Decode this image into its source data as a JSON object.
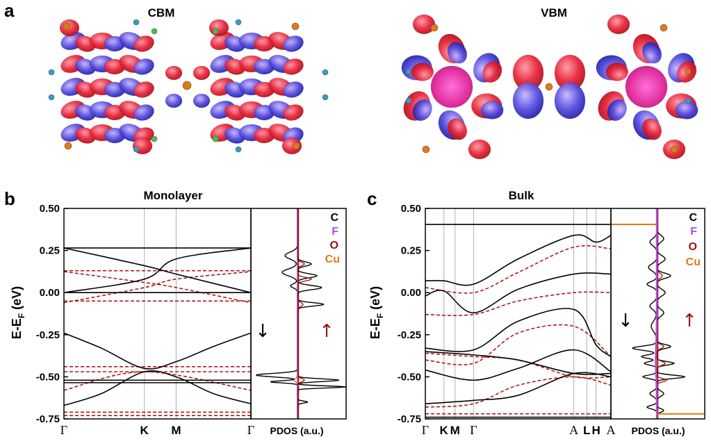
{
  "panels": {
    "a": "a",
    "b": "b",
    "c": "c"
  },
  "orbitals": {
    "cbm_label": "CBM",
    "vbm_label": "VBM"
  },
  "colors": {
    "red_lobe": "#e8283a",
    "blue_lobe": "#3535d0",
    "band_up": "#000000",
    "band_down": "#b01818",
    "F": "#b04ee0",
    "O": "#a01010",
    "Cu": "#e07a10",
    "grid": "#b0b0b0"
  },
  "chart_data": [
    {
      "type": "line",
      "title": "Monolayer",
      "ylabel": "E-E_F (eV)",
      "ylabel_main": "E-E",
      "ylabel_sub": "F",
      "ylabel_unit": " (eV)",
      "ylim": [
        -0.75,
        0.5
      ],
      "yticks": [
        "0.50",
        "0.25",
        "0.00",
        "-0.25",
        "-0.50",
        "-0.75"
      ],
      "kpath": [
        "Γ",
        "K",
        "M",
        "Γ"
      ],
      "kpos": [
        0,
        0.43,
        0.6,
        1.0
      ],
      "bands_black": [
        [
          [
            0,
            0.265
          ],
          [
            0.43,
            0.16
          ],
          [
            0.6,
            0.11
          ],
          [
            1,
            0
          ]
        ],
        [
          [
            0,
            0
          ],
          [
            0.43,
            0.08
          ],
          [
            0.6,
            0.2
          ],
          [
            1,
            0.265
          ]
        ],
        [
          [
            0,
            0.265
          ],
          [
            1,
            0.265
          ]
        ],
        [
          [
            0,
            0
          ],
          [
            1,
            0
          ]
        ],
        [
          [
            0,
            -0.24
          ],
          [
            0.2,
            -0.33
          ],
          [
            0.43,
            -0.45
          ],
          [
            0.6,
            -0.41
          ],
          [
            0.8,
            -0.32
          ],
          [
            1,
            -0.24
          ]
        ],
        [
          [
            0,
            -0.67
          ],
          [
            0.2,
            -0.6
          ],
          [
            0.43,
            -0.47
          ],
          [
            0.6,
            -0.5
          ],
          [
            0.8,
            -0.6
          ],
          [
            1,
            -0.66
          ]
        ],
        [
          [
            0,
            -0.52
          ],
          [
            1,
            -0.52
          ]
        ],
        [
          [
            0,
            -0.535
          ],
          [
            1,
            -0.535
          ]
        ]
      ],
      "bands_red": [
        [
          [
            0,
            0.13
          ],
          [
            1,
            0.13
          ]
        ],
        [
          [
            0,
            0.125
          ],
          [
            0.43,
            0.06
          ],
          [
            0.6,
            0.03
          ],
          [
            1,
            -0.06
          ]
        ],
        [
          [
            0,
            -0.06
          ],
          [
            0.43,
            0.03
          ],
          [
            0.6,
            0.08
          ],
          [
            1,
            0.125
          ]
        ],
        [
          [
            0,
            -0.05
          ],
          [
            1,
            -0.05
          ]
        ],
        [
          [
            0,
            -0.44
          ],
          [
            1,
            -0.44
          ]
        ],
        [
          [
            0,
            -0.47
          ],
          [
            1,
            -0.47
          ]
        ],
        [
          [
            0,
            -0.58
          ],
          [
            0.43,
            -0.47
          ],
          [
            1,
            -0.58
          ]
        ],
        [
          [
            0,
            -0.71
          ],
          [
            1,
            -0.71
          ]
        ],
        [
          [
            0,
            -0.73
          ],
          [
            1,
            -0.73
          ]
        ]
      ],
      "pdos_label": "PDOS (a.u.)",
      "legend": [
        "C",
        "F",
        "O",
        "Cu"
      ],
      "spin_down_arrow": "↓",
      "spin_up_arrow": "↑"
    },
    {
      "type": "line",
      "title": "Bulk",
      "ylabel": "E-E_F (eV)",
      "ylabel_main": "E-E",
      "ylabel_sub": "F",
      "ylabel_unit": " (eV)",
      "ylim": [
        -0.75,
        0.5
      ],
      "yticks": [
        "0.50",
        "0.25",
        "0.00",
        "-0.25",
        "-0.50",
        "-0.75"
      ],
      "kpath": [
        "Γ",
        "K",
        "M",
        "Γ",
        "A",
        "L",
        "H",
        "A"
      ],
      "kpos": [
        0,
        0.1,
        0.16,
        0.26,
        0.8,
        0.87,
        0.92,
        1.0
      ],
      "bands_black": [
        [
          [
            0,
            0.405
          ],
          [
            1,
            0.405
          ]
        ],
        [
          [
            0,
            0.07
          ],
          [
            0.1,
            0.07
          ],
          [
            0.26,
            0.05
          ],
          [
            0.5,
            0.2
          ],
          [
            0.8,
            0.34
          ],
          [
            0.92,
            0.3
          ],
          [
            1,
            0.34
          ]
        ],
        [
          [
            0,
            -0.02
          ],
          [
            0.1,
            0.01
          ],
          [
            0.26,
            -0.12
          ],
          [
            0.5,
            0.02
          ],
          [
            0.8,
            0.11
          ],
          [
            1,
            0.11
          ]
        ],
        [
          [
            0,
            -0.33
          ],
          [
            0.26,
            -0.34
          ],
          [
            0.5,
            -0.17
          ],
          [
            0.8,
            -0.1
          ],
          [
            0.92,
            -0.31
          ],
          [
            1,
            -0.38
          ]
        ],
        [
          [
            0,
            -0.35
          ],
          [
            0.26,
            -0.37
          ],
          [
            0.5,
            -0.4
          ],
          [
            0.8,
            -0.48
          ],
          [
            1,
            -0.48
          ]
        ],
        [
          [
            0,
            -0.46
          ],
          [
            0.26,
            -0.52
          ],
          [
            0.5,
            -0.45
          ],
          [
            0.8,
            -0.34
          ],
          [
            1,
            -0.47
          ]
        ],
        [
          [
            0,
            -0.66
          ],
          [
            0.26,
            -0.64
          ],
          [
            0.5,
            -0.61
          ],
          [
            0.8,
            -0.48
          ],
          [
            1,
            -0.5
          ]
        ],
        [
          [
            0,
            -0.74
          ],
          [
            1,
            -0.74
          ]
        ]
      ],
      "bands_red": [
        [
          [
            0,
            0.03
          ],
          [
            0.26,
            0.0
          ],
          [
            0.5,
            0.12
          ],
          [
            0.8,
            0.27
          ],
          [
            1,
            0.26
          ]
        ],
        [
          [
            0,
            -0.13
          ],
          [
            0.26,
            -0.13
          ],
          [
            0.5,
            -0.05
          ],
          [
            0.8,
            0.0
          ],
          [
            1,
            0.0
          ]
        ],
        [
          [
            0,
            -0.36
          ],
          [
            0.26,
            -0.38
          ],
          [
            0.5,
            -0.4
          ],
          [
            0.8,
            -0.5
          ],
          [
            1,
            -0.5
          ]
        ],
        [
          [
            0,
            -0.4
          ],
          [
            0.26,
            -0.42
          ],
          [
            0.5,
            -0.24
          ],
          [
            0.8,
            -0.2
          ],
          [
            1,
            -0.38
          ]
        ],
        [
          [
            0,
            -0.68
          ],
          [
            0.26,
            -0.66
          ],
          [
            0.5,
            -0.55
          ],
          [
            0.8,
            -0.5
          ],
          [
            1,
            -0.55
          ]
        ],
        [
          [
            0,
            -0.72
          ],
          [
            1,
            -0.72
          ]
        ]
      ],
      "pdos_label": "PDOS (a.u.)",
      "legend": [
        "C",
        "F",
        "O",
        "Cu"
      ],
      "spin_down_arrow": "↓",
      "spin_up_arrow": "↑"
    }
  ]
}
